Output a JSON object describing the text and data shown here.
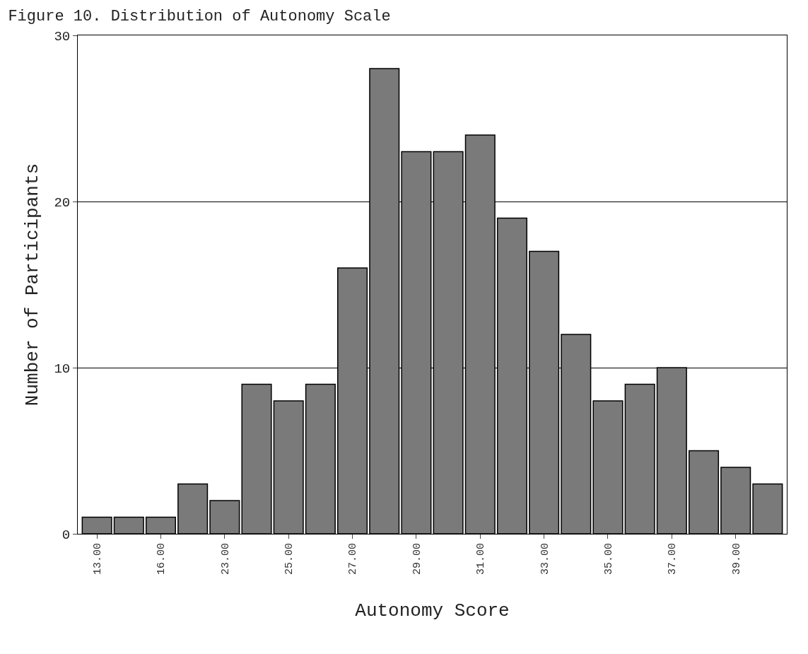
{
  "chart_data": {
    "type": "bar",
    "title": "Figure 10. Distribution of Autonomy Scale",
    "xlabel": "Autonomy Score",
    "ylabel": "Number of Participants",
    "categories": [
      "13.00",
      null,
      "16.00",
      null,
      "23.00",
      null,
      "25.00",
      null,
      "27.00",
      null,
      "29.00",
      null,
      "31.00",
      null,
      "33.00",
      null,
      "35.00",
      null,
      "37.00",
      null,
      "39.00",
      null
    ],
    "values": [
      1,
      1,
      1,
      3,
      2,
      9,
      8,
      9,
      16,
      28,
      23,
      23,
      24,
      19,
      17,
      12,
      8,
      9,
      10,
      5,
      4,
      3
    ],
    "color": "#7a7a7a",
    "ylim": [
      0,
      30
    ],
    "yticks": [
      0,
      10,
      20,
      30
    ],
    "grid": "y"
  }
}
